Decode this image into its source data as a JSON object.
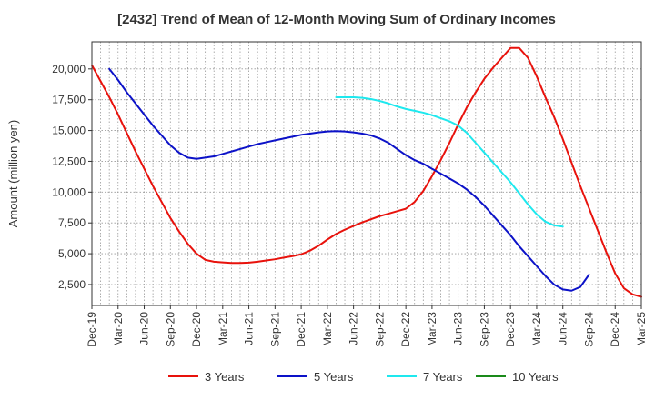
{
  "chart_data": {
    "type": "line",
    "title": "[2432]  Trend of Mean of 12-Month Moving Sum of Ordinary Incomes",
    "xlabel": "",
    "ylabel": "Amount (million yen)",
    "ylim": [
      800,
      22200
    ],
    "y_ticks": [
      2500,
      5000,
      7500,
      10000,
      12500,
      15000,
      17500,
      20000
    ],
    "y_tick_labels": [
      "2,500",
      "5,000",
      "7,500",
      "10,000",
      "12,500",
      "15,000",
      "17,500",
      "20,000"
    ],
    "x_tick_labels": [
      "Dec-19",
      "Mar-20",
      "Jun-20",
      "Sep-20",
      "Dec-20",
      "Mar-21",
      "Jun-21",
      "Sep-21",
      "Dec-21",
      "Mar-22",
      "Jun-22",
      "Sep-22",
      "Dec-22",
      "Mar-23",
      "Jun-23",
      "Sep-23",
      "Dec-23",
      "Mar-24",
      "Jun-24",
      "Sep-24",
      "Dec-24",
      "Mar-25"
    ],
    "x_range_months": [
      0,
      63
    ],
    "grid": true,
    "legend_position": "bottom",
    "series": [
      {
        "name": "3 Years",
        "color": "#e8120c",
        "points": [
          [
            0,
            20300
          ],
          [
            1,
            19000
          ],
          [
            2,
            17700
          ],
          [
            3,
            16300
          ],
          [
            4,
            14800
          ],
          [
            5,
            13300
          ],
          [
            6,
            11900
          ],
          [
            7,
            10500
          ],
          [
            8,
            9200
          ],
          [
            9,
            7900
          ],
          [
            10,
            6800
          ],
          [
            11,
            5800
          ],
          [
            12,
            5000
          ],
          [
            13,
            4500
          ],
          [
            14,
            4350
          ],
          [
            15,
            4300
          ],
          [
            16,
            4250
          ],
          [
            17,
            4250
          ],
          [
            18,
            4280
          ],
          [
            19,
            4350
          ],
          [
            20,
            4450
          ],
          [
            21,
            4550
          ],
          [
            22,
            4680
          ],
          [
            23,
            4800
          ],
          [
            24,
            4950
          ],
          [
            25,
            5250
          ],
          [
            26,
            5650
          ],
          [
            27,
            6150
          ],
          [
            28,
            6600
          ],
          [
            29,
            6950
          ],
          [
            30,
            7250
          ],
          [
            31,
            7550
          ],
          [
            32,
            7800
          ],
          [
            33,
            8050
          ],
          [
            34,
            8250
          ],
          [
            35,
            8450
          ],
          [
            36,
            8650
          ],
          [
            37,
            9200
          ],
          [
            38,
            10100
          ],
          [
            39,
            11300
          ],
          [
            40,
            12600
          ],
          [
            41,
            14000
          ],
          [
            42,
            15500
          ],
          [
            43,
            16900
          ],
          [
            44,
            18100
          ],
          [
            45,
            19200
          ],
          [
            46,
            20100
          ],
          [
            47,
            20900
          ],
          [
            48,
            21700
          ],
          [
            49,
            21700
          ],
          [
            50,
            20900
          ],
          [
            51,
            19400
          ],
          [
            52,
            17700
          ],
          [
            53,
            16100
          ],
          [
            54,
            14300
          ],
          [
            55,
            12400
          ],
          [
            56,
            10500
          ],
          [
            57,
            8700
          ],
          [
            58,
            6900
          ],
          [
            59,
            5100
          ],
          [
            60,
            3400
          ],
          [
            61,
            2200
          ],
          [
            62,
            1700
          ],
          [
            63,
            1500
          ]
        ]
      },
      {
        "name": "5 Years",
        "color": "#0c12c8",
        "points": [
          [
            2,
            20000
          ],
          [
            3,
            19100
          ],
          [
            4,
            18100
          ],
          [
            5,
            17200
          ],
          [
            6,
            16300
          ],
          [
            7,
            15400
          ],
          [
            8,
            14600
          ],
          [
            9,
            13800
          ],
          [
            10,
            13200
          ],
          [
            11,
            12800
          ],
          [
            12,
            12700
          ],
          [
            13,
            12800
          ],
          [
            14,
            12900
          ],
          [
            15,
            13100
          ],
          [
            16,
            13300
          ],
          [
            17,
            13500
          ],
          [
            18,
            13700
          ],
          [
            19,
            13900
          ],
          [
            20,
            14050
          ],
          [
            21,
            14200
          ],
          [
            22,
            14350
          ],
          [
            23,
            14500
          ],
          [
            24,
            14650
          ],
          [
            25,
            14750
          ],
          [
            26,
            14850
          ],
          [
            27,
            14920
          ],
          [
            28,
            14950
          ],
          [
            29,
            14920
          ],
          [
            30,
            14850
          ],
          [
            31,
            14750
          ],
          [
            32,
            14600
          ],
          [
            33,
            14350
          ],
          [
            34,
            14000
          ],
          [
            35,
            13500
          ],
          [
            36,
            13000
          ],
          [
            37,
            12600
          ],
          [
            38,
            12300
          ],
          [
            39,
            11900
          ],
          [
            40,
            11500
          ],
          [
            41,
            11100
          ],
          [
            42,
            10700
          ],
          [
            43,
            10200
          ],
          [
            44,
            9600
          ],
          [
            45,
            8900
          ],
          [
            46,
            8100
          ],
          [
            47,
            7300
          ],
          [
            48,
            6500
          ],
          [
            49,
            5600
          ],
          [
            50,
            4800
          ],
          [
            51,
            4000
          ],
          [
            52,
            3200
          ],
          [
            53,
            2500
          ],
          [
            54,
            2100
          ],
          [
            55,
            2000
          ],
          [
            56,
            2300
          ],
          [
            57,
            3300
          ]
        ]
      },
      {
        "name": "7 Years",
        "color": "#1ee8ee",
        "points": [
          [
            28,
            17700
          ],
          [
            29,
            17700
          ],
          [
            30,
            17700
          ],
          [
            31,
            17650
          ],
          [
            32,
            17550
          ],
          [
            33,
            17400
          ],
          [
            34,
            17200
          ],
          [
            35,
            16950
          ],
          [
            36,
            16750
          ],
          [
            37,
            16600
          ],
          [
            38,
            16450
          ],
          [
            39,
            16250
          ],
          [
            40,
            16000
          ],
          [
            41,
            15750
          ],
          [
            42,
            15400
          ],
          [
            43,
            14800
          ],
          [
            44,
            14000
          ],
          [
            45,
            13200
          ],
          [
            46,
            12400
          ],
          [
            47,
            11600
          ],
          [
            48,
            10800
          ],
          [
            49,
            9900
          ],
          [
            50,
            9000
          ],
          [
            51,
            8200
          ],
          [
            52,
            7600
          ],
          [
            53,
            7300
          ],
          [
            54,
            7200
          ]
        ]
      },
      {
        "name": "10 Years",
        "color": "#1a8a1a",
        "points": []
      }
    ]
  }
}
